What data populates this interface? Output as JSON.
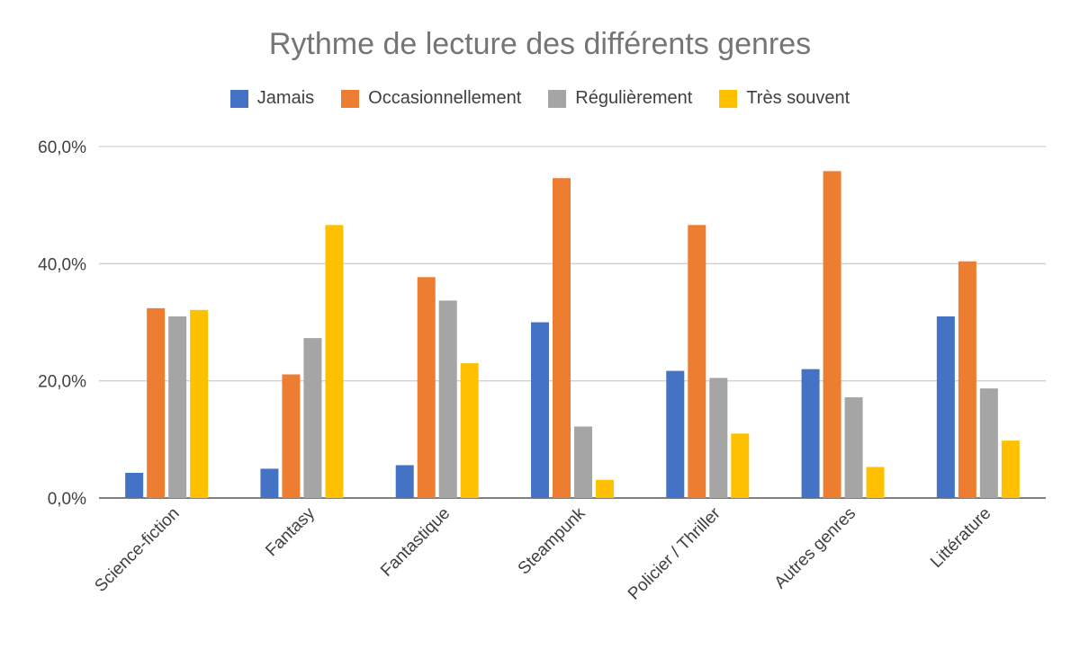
{
  "chart_data": {
    "type": "bar",
    "title": "Rythme de lecture des différents genres",
    "categories": [
      "Science-fiction",
      "Fantasy",
      "Fantastique",
      "Steampunk",
      "Policier / Thriller",
      "Autres genres",
      "Littérature"
    ],
    "series": [
      {
        "name": "Jamais",
        "color": "#4472C4",
        "values": [
          4.3,
          5.0,
          5.6,
          30.0,
          21.7,
          22.0,
          31.0
        ]
      },
      {
        "name": "Occasionnellement",
        "color": "#ED7D31",
        "values": [
          32.4,
          21.1,
          37.7,
          54.6,
          46.6,
          55.8,
          40.4
        ]
      },
      {
        "name": "Régulièrement",
        "color": "#A5A5A5",
        "values": [
          31.0,
          27.3,
          33.7,
          12.2,
          20.5,
          17.2,
          18.7
        ]
      },
      {
        "name": "Très souvent",
        "color": "#FFC000",
        "values": [
          32.1,
          46.6,
          23.0,
          3.1,
          11.0,
          5.3,
          9.8
        ]
      }
    ],
    "y_ticks": [
      "0,0%",
      "20,0%",
      "40,0%",
      "60,0%"
    ],
    "ylim": [
      0,
      60
    ],
    "grid": true,
    "legend_position": "top"
  }
}
